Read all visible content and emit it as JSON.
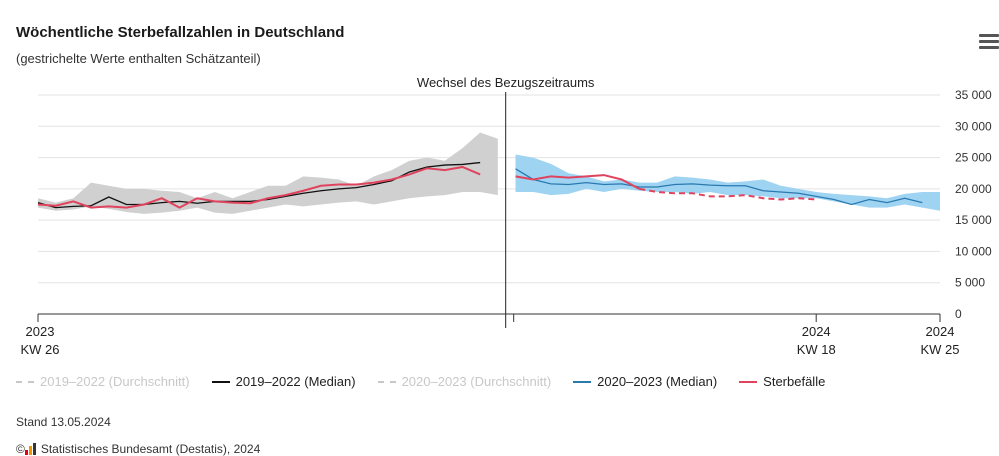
{
  "title": "Wöchentliche Sterbefallzahlen in Deutschland",
  "subtitle": "(gestrichelte Werte enthalten Schätzanteil)",
  "stand": "Stand 13.05.2024",
  "source": "Statistisches Bundesamt (Destatis), 2024",
  "source_prefix": "©",
  "legend": [
    {
      "label": "2019–2022 (Durchschnitt)",
      "style": "dash",
      "color": "#c8c8c8",
      "active": false
    },
    {
      "label": "2019–2022 (Median)",
      "style": "solid",
      "color": "#111111",
      "active": true
    },
    {
      "label": "2020–2023 (Durchschnitt)",
      "style": "dash",
      "color": "#c8c8c8",
      "active": false
    },
    {
      "label": "2020–2023 (Median)",
      "style": "solid",
      "color": "#2a7ab0",
      "active": true
    },
    {
      "label": "Sterbefälle",
      "style": "solid",
      "color": "#e0435e",
      "active": true
    }
  ],
  "chart_data": {
    "type": "line",
    "annotation": "Wechsel des Bezugszeitraums",
    "y_ticks": [
      "0",
      "5 000",
      "10 000",
      "15 000",
      "20 000",
      "25 000",
      "30 000",
      "35 000"
    ],
    "y_tick_values": [
      0,
      5000,
      10000,
      15000,
      20000,
      25000,
      30000,
      35000
    ],
    "ylim": [
      0,
      35000
    ],
    "x_labels": [
      {
        "line1": "2023",
        "line2": "KW 26",
        "week_index": 0
      },
      {
        "line1": "2024",
        "line2": "KW 18",
        "week_index": 44
      },
      {
        "line1": "2024",
        "line2": "KW 25",
        "week_index": 51
      }
    ],
    "colors": {
      "grey_band": "#d0d0d0",
      "blue_band": "#9fd3f2",
      "median1": "#111111",
      "median2": "#2a7ab0",
      "deaths": "#e0435e",
      "grid": "#e3e3e3",
      "axis": "#333333"
    },
    "period1": {
      "weeks": [
        0,
        1,
        2,
        3,
        4,
        5,
        6,
        7,
        8,
        9,
        10,
        11,
        12,
        13,
        14,
        15,
        16,
        17,
        18,
        19,
        20,
        21,
        22,
        23,
        24,
        25,
        26
      ],
      "band_min": [
        17000,
        16500,
        16700,
        17200,
        16800,
        16300,
        16000,
        16200,
        16500,
        17000,
        16200,
        16000,
        16500,
        17000,
        17500,
        17200,
        17500,
        17800,
        18000,
        17500,
        18000,
        18500,
        18800,
        19000,
        19500,
        19500,
        19000
      ],
      "band_max": [
        18500,
        17800,
        18500,
        21000,
        20500,
        20000,
        20000,
        19700,
        19500,
        18500,
        19500,
        18500,
        19500,
        20500,
        20500,
        22000,
        21800,
        21500,
        20500,
        22000,
        23000,
        24500,
        25000,
        24500,
        26500,
        29000,
        28000
      ],
      "median": [
        17800,
        17000,
        17200,
        17300,
        18700,
        17500,
        17500,
        17800,
        18000,
        17700,
        18000,
        18000,
        18000,
        18300,
        18800,
        19300,
        19700,
        20000,
        20200,
        20700,
        21300,
        22700,
        23500,
        23800,
        23900,
        24200,
        null
      ],
      "deaths": [
        17500,
        17300,
        18000,
        17000,
        17200,
        17000,
        17500,
        18500,
        17000,
        18500,
        18000,
        17800,
        17700,
        18500,
        19000,
        19700,
        20500,
        20700,
        20700,
        21000,
        21500,
        22300,
        23300,
        23000,
        23500,
        22300,
        null
      ]
    },
    "period2": {
      "weeks": [
        27,
        28,
        29,
        30,
        31,
        32,
        33,
        34,
        35,
        36,
        37,
        38,
        39,
        40,
        41,
        42,
        43,
        44,
        45,
        46,
        47,
        48,
        49,
        50,
        51
      ],
      "band_min": [
        19500,
        19500,
        19000,
        19200,
        20000,
        19500,
        20000,
        19700,
        19500,
        19500,
        19200,
        19500,
        19000,
        19000,
        18800,
        18500,
        18500,
        18500,
        18000,
        17500,
        17000,
        17000,
        17500,
        17000,
        16500
      ],
      "band_max": [
        25500,
        25000,
        24000,
        22500,
        22000,
        21200,
        21500,
        21000,
        21000,
        22000,
        21800,
        21500,
        21000,
        21200,
        21500,
        20500,
        20000,
        19500,
        19200,
        19000,
        18800,
        18500,
        19200,
        19500,
        19500
      ],
      "median": [
        23200,
        21500,
        20800,
        20700,
        21000,
        20700,
        20800,
        20300,
        20300,
        20700,
        20800,
        20600,
        20500,
        20500,
        19700,
        19500,
        19300,
        18800,
        18300,
        17500,
        18300,
        17800,
        18500,
        17800,
        null
      ],
      "deaths_solid": [
        22000,
        21500,
        22000,
        21800,
        22000,
        22200,
        21500,
        20000,
        null,
        null,
        null,
        null,
        null,
        null,
        null,
        null,
        null,
        null,
        null,
        null,
        null,
        null,
        null,
        null,
        null
      ],
      "deaths_dashed": [
        null,
        null,
        null,
        null,
        null,
        null,
        null,
        20000,
        19500,
        19300,
        19300,
        18800,
        18800,
        19000,
        18500,
        18300,
        18500,
        18300,
        null,
        null,
        null,
        null,
        null,
        null,
        null
      ]
    }
  }
}
